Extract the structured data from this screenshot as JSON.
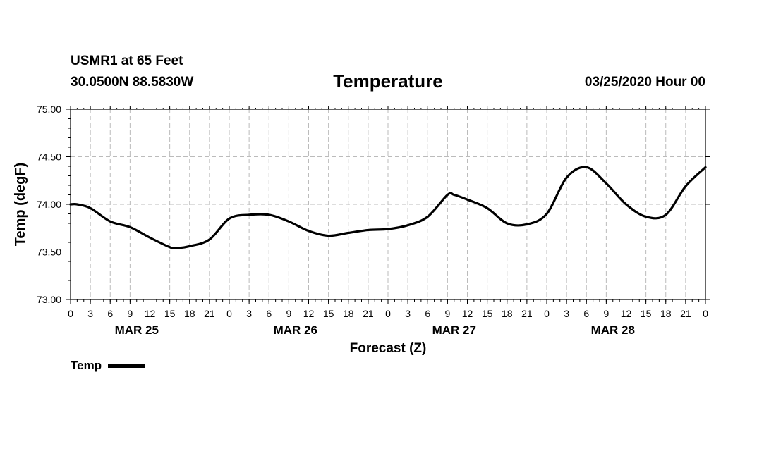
{
  "header": {
    "station": "USMR1 at 65 Feet",
    "coords": "30.0500N 88.5830W",
    "datetime": "03/25/2020 Hour 00"
  },
  "chart_data": {
    "type": "line",
    "title": "Temperature",
    "xlabel": "Forecast (Z)",
    "ylabel": "Temp (degF)",
    "ylim": [
      73.0,
      75.0
    ],
    "yticks": [
      "73.00",
      "73.50",
      "74.00",
      "74.50",
      "75.00"
    ],
    "xlim": [
      0,
      96
    ],
    "xticks": [
      "0",
      "3",
      "6",
      "9",
      "12",
      "15",
      "18",
      "21",
      "0",
      "3",
      "6",
      "9",
      "12",
      "15",
      "18",
      "21",
      "0",
      "3",
      "6",
      "9",
      "12",
      "15",
      "18",
      "21",
      "0",
      "3",
      "6",
      "9",
      "12",
      "15",
      "18",
      "21",
      "0"
    ],
    "day_labels": [
      "MAR 25",
      "MAR 26",
      "MAR 27",
      "MAR 28"
    ],
    "grid": true,
    "legend": "bottom-left",
    "series": [
      {
        "name": "Temp",
        "color": "#000000",
        "x": [
          0,
          1,
          3,
          6,
          9,
          12,
          15,
          16,
          18,
          21,
          24,
          27,
          30,
          33,
          36,
          39,
          42,
          45,
          48,
          51,
          54,
          57,
          58,
          60,
          63,
          66,
          69,
          72,
          75,
          78,
          81,
          84,
          87,
          90,
          93,
          96
        ],
        "values": [
          74.0,
          74.0,
          73.96,
          73.82,
          73.76,
          73.65,
          73.55,
          73.54,
          73.56,
          73.63,
          73.85,
          73.89,
          73.89,
          73.82,
          73.72,
          73.67,
          73.7,
          73.73,
          73.74,
          73.78,
          73.87,
          74.1,
          74.1,
          74.05,
          73.96,
          73.8,
          73.79,
          73.9,
          74.28,
          74.39,
          74.22,
          74.0,
          73.87,
          73.89,
          74.19,
          74.39
        ]
      }
    ]
  }
}
